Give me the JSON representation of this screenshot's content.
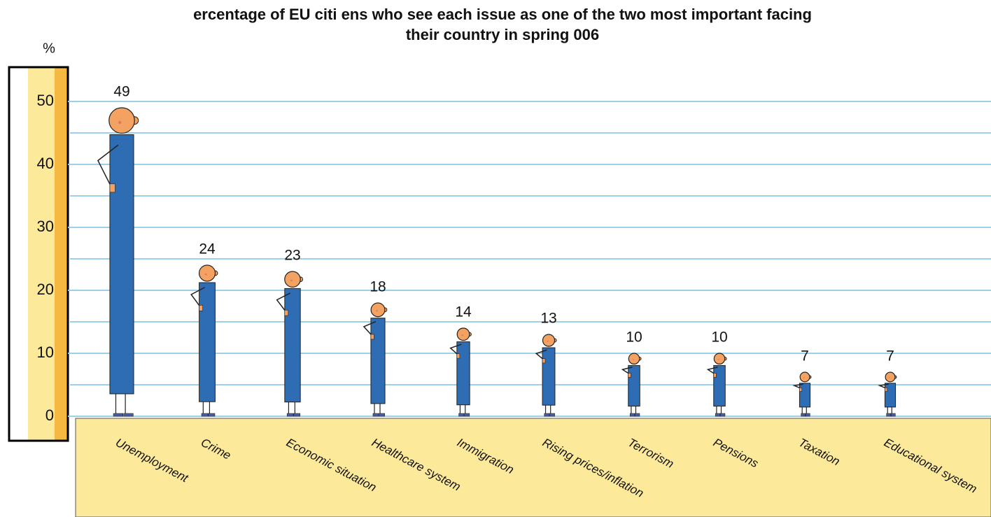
{
  "chart_data": {
    "type": "pictogram",
    "title": "ercentage of EU citi ens who see each issue as one of the two most important facing their country in spring 006",
    "ylabel": "%",
    "categories": [
      "Unemployment",
      "Crime",
      "Economic situation",
      "Healthcare system",
      "Immigration",
      "Rising prices/inflation",
      "Terrorism",
      "Pensions",
      "Taxation",
      "Educational system"
    ],
    "values": [
      49,
      24,
      23,
      18,
      14,
      13,
      10,
      10,
      7,
      7
    ],
    "color": "#2e6db4",
    "ylim": [
      0,
      50
    ],
    "yticks": [
      0,
      10,
      20,
      30,
      40,
      50
    ],
    "ygrid": [
      0,
      5,
      10,
      15,
      20,
      25,
      30,
      35,
      40,
      45,
      50
    ],
    "grid": true
  }
}
